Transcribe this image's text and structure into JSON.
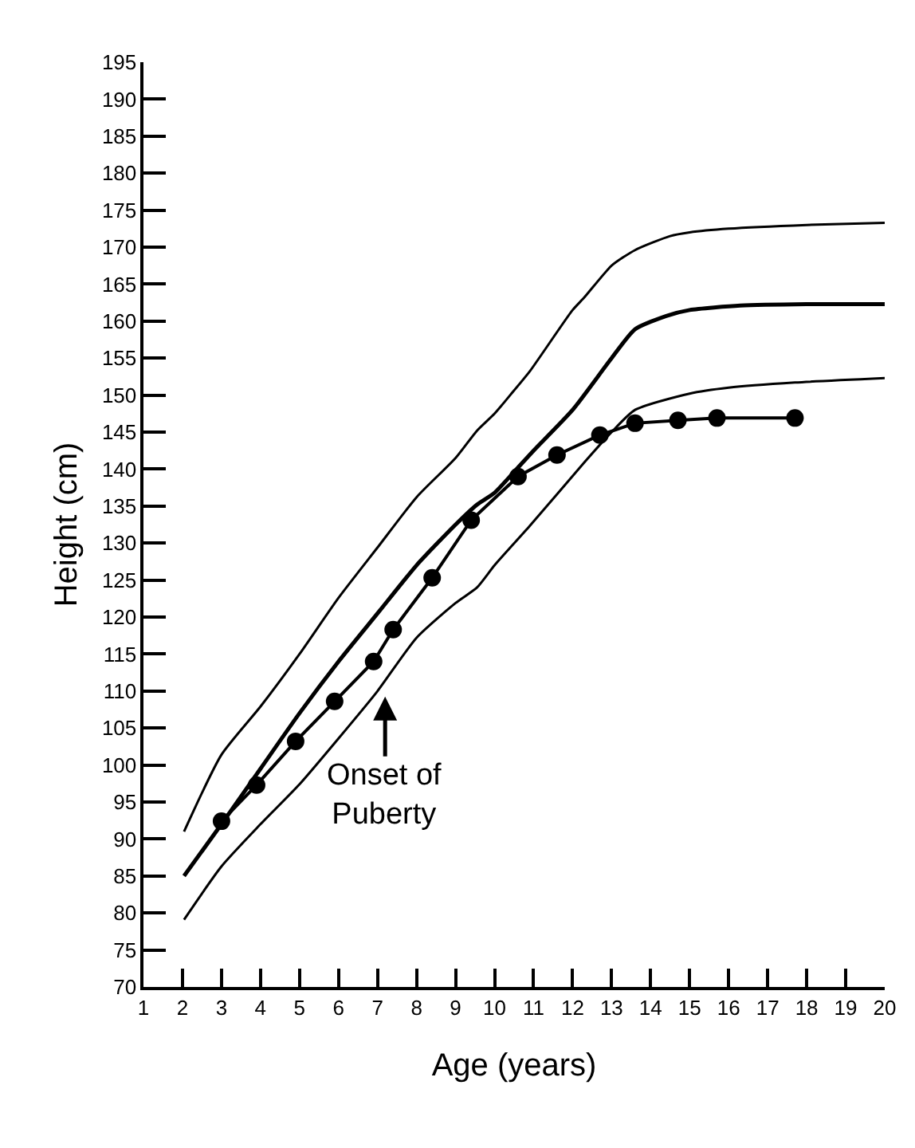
{
  "chart_data": {
    "type": "line",
    "xlabel": "Age (years)",
    "ylabel": "Height (cm)",
    "xlim": [
      1,
      20
    ],
    "xticks": [
      1,
      2,
      3,
      4,
      5,
      6,
      7,
      8,
      9,
      10,
      11,
      12,
      13,
      14,
      15,
      16,
      17,
      18,
      19,
      20
    ],
    "ylim": [
      70,
      195
    ],
    "yticks": [
      70,
      75,
      80,
      85,
      90,
      95,
      100,
      105,
      110,
      115,
      120,
      125,
      130,
      135,
      140,
      145,
      150,
      155,
      160,
      165,
      170,
      175,
      180,
      185,
      190,
      195
    ],
    "series": [
      {
        "color": "#000000",
        "marker": "none",
        "x": [
          2.04,
          3,
          4,
          5,
          6,
          7,
          8,
          9,
          9.55,
          10,
          10.4,
          10.9,
          12,
          12.3,
          13,
          13.6,
          14.5,
          15,
          16,
          18,
          20
        ],
        "values": [
          91,
          101.4,
          107.9,
          115,
          122.6,
          129.4,
          136.2,
          141.5,
          145.2,
          147.5,
          150,
          153.2,
          161.5,
          163.2,
          167.5,
          169.6,
          171.5,
          172,
          172.5,
          173,
          173.3
        ]
      },
      {
        "color": "#000000",
        "marker": "none",
        "x": [
          2.04,
          3,
          4,
          5,
          6,
          7,
          8,
          9,
          9.55,
          10,
          10.6,
          11,
          12,
          13,
          13.6,
          14.4,
          15,
          16.3,
          18,
          20
        ],
        "values": [
          85,
          92,
          99.5,
          107,
          114,
          120.5,
          127,
          132.5,
          135.2,
          136.8,
          140.2,
          142.5,
          148,
          155,
          158.9,
          160.7,
          161.5,
          162.1,
          162.3,
          162.3
        ]
      },
      {
        "color": "#000000",
        "marker": "none",
        "x": [
          2.04,
          3,
          4,
          5,
          6,
          7,
          8,
          9,
          9.55,
          10,
          10.9,
          12.3,
          13,
          13.6,
          15,
          16,
          17.7,
          20
        ],
        "values": [
          79.1,
          86.3,
          92,
          97.4,
          103.6,
          110,
          117.2,
          121.9,
          124,
          127,
          132.3,
          140.9,
          145,
          148,
          150.2,
          151,
          151.7,
          152.3
        ]
      },
      {
        "color": "#000000",
        "marker": "circle",
        "x": [
          3,
          3.9,
          4.9,
          5.9,
          6.9,
          7.4,
          8.4,
          9.4,
          10.6,
          11.6,
          12.7,
          13.6,
          14.7,
          15.7,
          17.7
        ],
        "values": [
          92.4,
          97.3,
          103.2,
          108.6,
          114,
          118.3,
          125.3,
          133.1,
          139,
          141.9,
          144.6,
          146.2,
          146.6,
          146.9,
          146.9
        ]
      }
    ],
    "annotations": [
      "Onset of\nPuberty"
    ]
  }
}
